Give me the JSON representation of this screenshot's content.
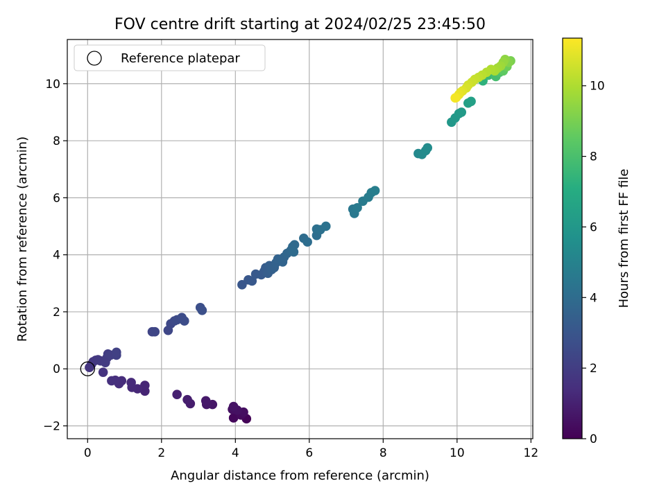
{
  "chart_data": {
    "type": "scatter",
    "title": "FOV centre drift starting at 2024/02/25 23:45:50",
    "xlabel": "Angular distance from reference (arcmin)",
    "ylabel": "Rotation from reference (arcmin)",
    "xlim": [
      -0.55,
      12.05
    ],
    "ylim": [
      -2.45,
      11.55
    ],
    "xticks": [
      0,
      2,
      4,
      6,
      8,
      10,
      12
    ],
    "yticks": [
      -2,
      0,
      2,
      4,
      6,
      8,
      10
    ],
    "grid": true,
    "legend": {
      "placement": "upper-left",
      "entries": [
        "Reference platepar"
      ]
    },
    "reference_point": {
      "x": 0,
      "y": 0
    },
    "colorbar": {
      "label": "Hours from first FF file",
      "range": [
        0,
        11.35
      ],
      "ticks": [
        0,
        2,
        4,
        6,
        8,
        10
      ],
      "colormap": "viridis"
    },
    "points": [
      {
        "x": 4.3,
        "y": -1.75,
        "c": 0.1
      },
      {
        "x": 3.95,
        "y": -1.72,
        "c": 0.2
      },
      {
        "x": 4.15,
        "y": -1.62,
        "c": 0.3
      },
      {
        "x": 4.22,
        "y": -1.52,
        "c": 0.4
      },
      {
        "x": 3.92,
        "y": -1.42,
        "c": 0.45
      },
      {
        "x": 4.05,
        "y": -1.45,
        "c": 0.5
      },
      {
        "x": 3.95,
        "y": -1.32,
        "c": 0.55
      },
      {
        "x": 3.38,
        "y": -1.25,
        "c": 0.65
      },
      {
        "x": 3.22,
        "y": -1.25,
        "c": 0.7
      },
      {
        "x": 3.2,
        "y": -1.12,
        "c": 0.75
      },
      {
        "x": 2.78,
        "y": -1.22,
        "c": 0.85
      },
      {
        "x": 2.7,
        "y": -1.08,
        "c": 0.9
      },
      {
        "x": 2.42,
        "y": -0.9,
        "c": 1.0
      },
      {
        "x": 1.55,
        "y": -0.78,
        "c": 1.1
      },
      {
        "x": 1.55,
        "y": -0.58,
        "c": 1.15
      },
      {
        "x": 1.35,
        "y": -0.7,
        "c": 1.2
      },
      {
        "x": 1.2,
        "y": -0.65,
        "c": 1.25
      },
      {
        "x": 1.18,
        "y": -0.48,
        "c": 1.3
      },
      {
        "x": 0.92,
        "y": -0.42,
        "c": 1.35
      },
      {
        "x": 0.85,
        "y": -0.52,
        "c": 1.4
      },
      {
        "x": 0.75,
        "y": -0.4,
        "c": 1.45
      },
      {
        "x": 0.65,
        "y": -0.42,
        "c": 1.5
      },
      {
        "x": 0.42,
        "y": -0.12,
        "c": 1.6
      },
      {
        "x": 0.05,
        "y": 0.05,
        "c": 1.65
      },
      {
        "x": 0.1,
        "y": 0.15,
        "c": 1.7
      },
      {
        "x": 0.15,
        "y": 0.25,
        "c": 1.75
      },
      {
        "x": 0.22,
        "y": 0.3,
        "c": 1.8
      },
      {
        "x": 0.28,
        "y": 0.32,
        "c": 1.82
      },
      {
        "x": 0.35,
        "y": 0.28,
        "c": 1.85
      },
      {
        "x": 0.48,
        "y": 0.22,
        "c": 1.9
      },
      {
        "x": 0.52,
        "y": 0.38,
        "c": 1.95
      },
      {
        "x": 0.55,
        "y": 0.52,
        "c": 2.0
      },
      {
        "x": 0.62,
        "y": 0.48,
        "c": 2.05
      },
      {
        "x": 0.78,
        "y": 0.48,
        "c": 2.1
      },
      {
        "x": 0.78,
        "y": 0.58,
        "c": 2.15
      },
      {
        "x": 1.75,
        "y": 1.3,
        "c": 2.3
      },
      {
        "x": 1.82,
        "y": 1.3,
        "c": 2.35
      },
      {
        "x": 2.18,
        "y": 1.35,
        "c": 2.4
      },
      {
        "x": 2.25,
        "y": 1.58,
        "c": 2.45
      },
      {
        "x": 2.35,
        "y": 1.68,
        "c": 2.5
      },
      {
        "x": 2.42,
        "y": 1.72,
        "c": 2.55
      },
      {
        "x": 2.55,
        "y": 1.8,
        "c": 2.6
      },
      {
        "x": 2.62,
        "y": 1.68,
        "c": 2.65
      },
      {
        "x": 3.05,
        "y": 2.15,
        "c": 2.7
      },
      {
        "x": 3.1,
        "y": 2.05,
        "c": 2.75
      },
      {
        "x": 4.18,
        "y": 2.95,
        "c": 3.0
      },
      {
        "x": 4.35,
        "y": 3.12,
        "c": 3.05
      },
      {
        "x": 4.45,
        "y": 3.08,
        "c": 3.1
      },
      {
        "x": 4.55,
        "y": 3.32,
        "c": 3.15
      },
      {
        "x": 4.7,
        "y": 3.3,
        "c": 3.2
      },
      {
        "x": 4.78,
        "y": 3.42,
        "c": 3.25
      },
      {
        "x": 4.82,
        "y": 3.55,
        "c": 3.3
      },
      {
        "x": 4.88,
        "y": 3.35,
        "c": 3.35
      },
      {
        "x": 4.92,
        "y": 3.62,
        "c": 3.4
      },
      {
        "x": 4.98,
        "y": 3.48,
        "c": 3.45
      },
      {
        "x": 5.05,
        "y": 3.55,
        "c": 3.5
      },
      {
        "x": 5.1,
        "y": 3.72,
        "c": 3.55
      },
      {
        "x": 5.15,
        "y": 3.85,
        "c": 3.6
      },
      {
        "x": 5.28,
        "y": 3.75,
        "c": 3.65
      },
      {
        "x": 5.32,
        "y": 3.92,
        "c": 3.7
      },
      {
        "x": 5.4,
        "y": 4.05,
        "c": 3.75
      },
      {
        "x": 5.5,
        "y": 4.15,
        "c": 3.8
      },
      {
        "x": 5.55,
        "y": 4.28,
        "c": 3.85
      },
      {
        "x": 5.6,
        "y": 4.35,
        "c": 3.9
      },
      {
        "x": 5.58,
        "y": 4.1,
        "c": 3.95
      },
      {
        "x": 5.85,
        "y": 4.58,
        "c": 4.0
      },
      {
        "x": 5.95,
        "y": 4.45,
        "c": 4.05
      },
      {
        "x": 6.2,
        "y": 4.68,
        "c": 4.1
      },
      {
        "x": 6.2,
        "y": 4.9,
        "c": 4.15
      },
      {
        "x": 6.3,
        "y": 4.88,
        "c": 4.2
      },
      {
        "x": 6.45,
        "y": 5.0,
        "c": 4.25
      },
      {
        "x": 7.18,
        "y": 5.6,
        "c": 4.5
      },
      {
        "x": 7.22,
        "y": 5.45,
        "c": 4.55
      },
      {
        "x": 7.3,
        "y": 5.65,
        "c": 4.6
      },
      {
        "x": 7.45,
        "y": 5.88,
        "c": 4.65
      },
      {
        "x": 7.6,
        "y": 6.02,
        "c": 4.7
      },
      {
        "x": 7.68,
        "y": 6.18,
        "c": 4.75
      },
      {
        "x": 7.78,
        "y": 6.25,
        "c": 4.8
      },
      {
        "x": 8.95,
        "y": 7.55,
        "c": 5.3
      },
      {
        "x": 9.05,
        "y": 7.52,
        "c": 5.35
      },
      {
        "x": 9.15,
        "y": 7.65,
        "c": 5.4
      },
      {
        "x": 9.2,
        "y": 7.75,
        "c": 5.45
      },
      {
        "x": 9.85,
        "y": 8.65,
        "c": 6.0
      },
      {
        "x": 9.95,
        "y": 8.8,
        "c": 6.05
      },
      {
        "x": 10.05,
        "y": 8.95,
        "c": 6.1
      },
      {
        "x": 10.12,
        "y": 9.0,
        "c": 6.15
      },
      {
        "x": 10.3,
        "y": 9.32,
        "c": 6.4
      },
      {
        "x": 10.38,
        "y": 9.38,
        "c": 6.45
      },
      {
        "x": 10.7,
        "y": 10.1,
        "c": 7.3
      },
      {
        "x": 10.85,
        "y": 10.3,
        "c": 7.6
      },
      {
        "x": 11.05,
        "y": 10.25,
        "c": 7.9
      },
      {
        "x": 11.15,
        "y": 10.4,
        "c": 8.1
      },
      {
        "x": 11.2,
        "y": 10.55,
        "c": 8.3
      },
      {
        "x": 11.25,
        "y": 10.45,
        "c": 8.5
      },
      {
        "x": 11.35,
        "y": 10.6,
        "c": 8.8
      },
      {
        "x": 11.45,
        "y": 10.8,
        "c": 9.0
      },
      {
        "x": 11.4,
        "y": 10.75,
        "c": 9.2
      },
      {
        "x": 11.3,
        "y": 10.85,
        "c": 9.4
      },
      {
        "x": 11.25,
        "y": 10.75,
        "c": 9.55
      },
      {
        "x": 11.18,
        "y": 10.62,
        "c": 9.7
      },
      {
        "x": 11.1,
        "y": 10.55,
        "c": 9.8
      },
      {
        "x": 11.02,
        "y": 10.45,
        "c": 9.9
      },
      {
        "x": 10.92,
        "y": 10.5,
        "c": 10.0
      },
      {
        "x": 10.8,
        "y": 10.4,
        "c": 10.1
      },
      {
        "x": 10.68,
        "y": 10.3,
        "c": 10.2
      },
      {
        "x": 10.58,
        "y": 10.22,
        "c": 10.3
      },
      {
        "x": 10.48,
        "y": 10.15,
        "c": 10.4
      },
      {
        "x": 10.4,
        "y": 10.05,
        "c": 10.5
      },
      {
        "x": 10.3,
        "y": 9.95,
        "c": 10.6
      },
      {
        "x": 10.25,
        "y": 9.85,
        "c": 10.7
      },
      {
        "x": 10.15,
        "y": 9.75,
        "c": 10.8
      },
      {
        "x": 10.1,
        "y": 9.7,
        "c": 10.9
      },
      {
        "x": 10.05,
        "y": 9.62,
        "c": 11.0
      },
      {
        "x": 9.98,
        "y": 9.52,
        "c": 11.1
      },
      {
        "x": 9.95,
        "y": 9.5,
        "c": 11.2
      }
    ]
  }
}
